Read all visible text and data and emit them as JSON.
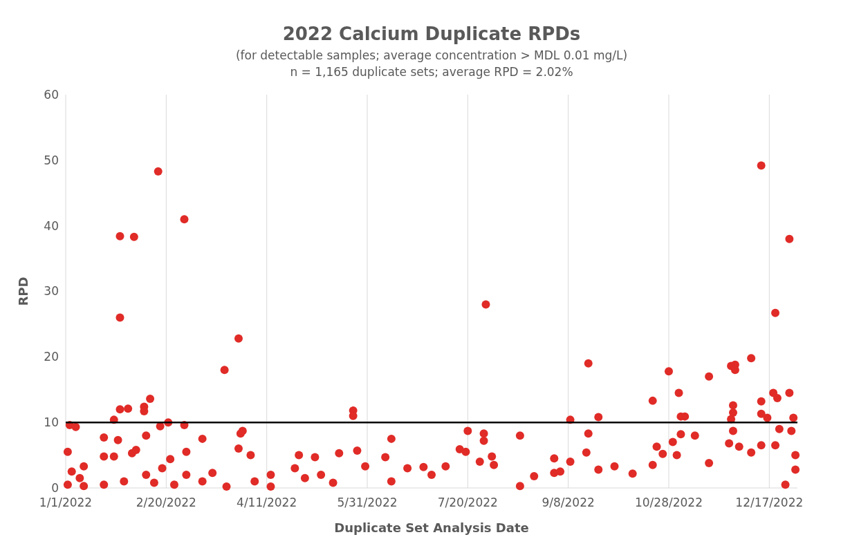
{
  "chart_data": {
    "type": "scatter",
    "title": "2022 Calcium Duplicate RPDs",
    "subtitle": "(for detectable samples; average concentration > MDL 0.01 mg/L)\nn = 1,165 duplicate sets; average RPD = 2.02%",
    "xlabel": "Duplicate Set Analysis Date",
    "ylabel": "RPD",
    "xlim": [
      "2022-01-01",
      "2022-12-31"
    ],
    "xticks": [
      {
        "value": "2022-01-01",
        "label": "1/1/2022"
      },
      {
        "value": "2022-02-20",
        "label": "2/20/2022"
      },
      {
        "value": "2022-04-11",
        "label": "4/11/2022"
      },
      {
        "value": "2022-05-31",
        "label": "5/31/2022"
      },
      {
        "value": "2022-07-20",
        "label": "7/20/2022"
      },
      {
        "value": "2022-09-08",
        "label": "9/8/2022"
      },
      {
        "value": "2022-10-28",
        "label": "10/28/2022"
      },
      {
        "value": "2022-12-17",
        "label": "12/17/2022"
      }
    ],
    "ylim": [
      0,
      60
    ],
    "yticks": [
      0,
      10,
      20,
      30,
      40,
      50,
      60
    ],
    "grid": "x",
    "marker": "circle",
    "ref_lines": [
      {
        "axis": "y",
        "value": 10,
        "label": null,
        "color": "#000000"
      }
    ],
    "series": [
      {
        "color": "#e02b27",
        "x": [
          "2022-01-03",
          "2022-01-06",
          "2022-01-28",
          "2022-01-28",
          "2022-02-04",
          "2022-02-16",
          "2022-03-01",
          "2022-03-21",
          "2022-03-28",
          "2022-05-24",
          "2022-05-24",
          "2022-07-29",
          "2022-09-18",
          "2022-09-09",
          "2022-09-23",
          "2022-10-20",
          "2022-10-28",
          "2022-11-02",
          "2022-11-17",
          "2022-11-28",
          "2022-11-30",
          "2022-11-30",
          "2022-12-08",
          "2022-12-13",
          "2022-12-20",
          "2022-12-27",
          "2022-12-27",
          "2022-12-19",
          "2022-12-13",
          "2022-12-21",
          "2022-12-29",
          "2022-02-12",
          "2022-02-09",
          "2022-02-09",
          "2022-01-28",
          "2022-02-01",
          "2022-01-25",
          "2022-02-21",
          "2022-03-01",
          "2022-11-29",
          "2022-11-29",
          "2022-11-28",
          "2022-12-13",
          "2022-12-16",
          "2022-11-03",
          "2022-11-05",
          "2022-01-02",
          "2022-01-02",
          "2022-01-04",
          "2022-01-08",
          "2022-01-10",
          "2022-01-10",
          "2022-01-20",
          "2022-01-20",
          "2022-01-20",
          "2022-01-25",
          "2022-01-27",
          "2022-01-30",
          "2022-02-03",
          "2022-02-05",
          "2022-02-10",
          "2022-02-10",
          "2022-02-14",
          "2022-02-18",
          "2022-02-17",
          "2022-02-22",
          "2022-02-24",
          "2022-03-02",
          "2022-03-02",
          "2022-03-10",
          "2022-03-10",
          "2022-03-15",
          "2022-03-22",
          "2022-03-29",
          "2022-03-30",
          "2022-03-28",
          "2022-04-03",
          "2022-04-05",
          "2022-04-13",
          "2022-04-13",
          "2022-04-25",
          "2022-04-27",
          "2022-04-30",
          "2022-05-05",
          "2022-05-08",
          "2022-05-14",
          "2022-05-17",
          "2022-05-26",
          "2022-05-30",
          "2022-06-09",
          "2022-06-12",
          "2022-06-12",
          "2022-06-20",
          "2022-06-28",
          "2022-07-02",
          "2022-07-09",
          "2022-07-16",
          "2022-07-19",
          "2022-07-20",
          "2022-07-26",
          "2022-07-28",
          "2022-07-28",
          "2022-08-01",
          "2022-08-02",
          "2022-08-15",
          "2022-08-15",
          "2022-08-22",
          "2022-09-01",
          "2022-09-01",
          "2022-09-04",
          "2022-09-09",
          "2022-09-17",
          "2022-09-18",
          "2022-09-23",
          "2022-10-01",
          "2022-10-10",
          "2022-10-20",
          "2022-10-22",
          "2022-10-25",
          "2022-10-30",
          "2022-11-01",
          "2022-11-03",
          "2022-11-10",
          "2022-11-17",
          "2022-11-27",
          "2022-11-29",
          "2022-12-02",
          "2022-12-08",
          "2022-12-13",
          "2022-12-20",
          "2022-12-22",
          "2022-12-28",
          "2022-12-30",
          "2022-12-30",
          "2022-12-25"
        ],
        "values": [
          9.6,
          9.3,
          38.4,
          26,
          38.3,
          48.3,
          41,
          18,
          22.8,
          11.8,
          11,
          28,
          19,
          10.4,
          10.8,
          13.3,
          17.8,
          14.5,
          17,
          18.6,
          18.8,
          18,
          19.8,
          49.2,
          26.7,
          38,
          14.5,
          14.5,
          13.2,
          13.7,
          10.7,
          13.6,
          12.4,
          11.7,
          12,
          12.1,
          10.4,
          10,
          9.6,
          12.6,
          11.5,
          10.5,
          11.3,
          10.7,
          10.9,
          10.9,
          5.5,
          0.5,
          2.5,
          1.5,
          3.3,
          0.3,
          7.7,
          4.8,
          0.5,
          4.8,
          7.3,
          1,
          5.3,
          5.8,
          8,
          2,
          0.8,
          3,
          9.4,
          4.4,
          0.5,
          5.5,
          2,
          7.5,
          1,
          2.3,
          0.2,
          8.3,
          8.7,
          6,
          5,
          1,
          2,
          0.2,
          3,
          5,
          1.5,
          4.7,
          2,
          0.8,
          5.3,
          5.7,
          3.3,
          4.7,
          7.5,
          1,
          3,
          3.2,
          2,
          3.3,
          5.9,
          5.5,
          8.7,
          4,
          8.3,
          7.2,
          4.8,
          3.5,
          8,
          0.3,
          1.8,
          4.5,
          2.3,
          2.5,
          4,
          5.4,
          8.3,
          2.8,
          3.3,
          2.2,
          3.5,
          6.3,
          5.2,
          7,
          5,
          8.2,
          8,
          3.8,
          6.8,
          8.7,
          6.3,
          5.4,
          6.5,
          6.5,
          9,
          8.7,
          5,
          2.8,
          0.5
        ]
      }
    ]
  }
}
